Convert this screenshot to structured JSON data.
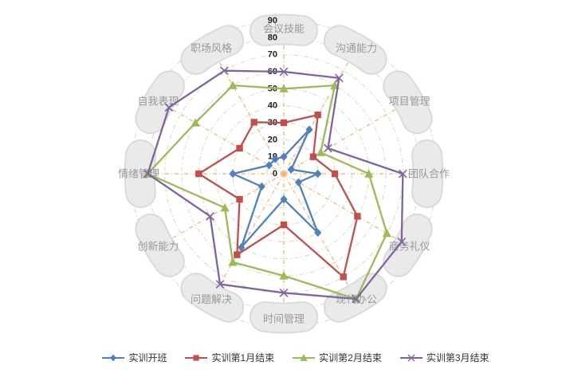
{
  "chart_data": {
    "type": "radar",
    "axis_max": 90,
    "tick_interval": 10,
    "ticks": [
      "0",
      "10",
      "20",
      "30",
      "40",
      "50",
      "60",
      "70",
      "80",
      "90"
    ],
    "categories": [
      "会议技能",
      "沟通能力",
      "项目管理",
      "团队合作",
      "商务礼仪",
      "现代办公",
      "时间管理",
      "问题解决",
      "创新能力",
      "情绪管理",
      "自我表现",
      "职场风格"
    ],
    "series": [
      {
        "name": "实训开班",
        "color": "#4F81BD",
        "symbol": "diamond",
        "values": [
          10,
          30,
          5,
          20,
          10,
          40,
          15,
          50,
          15,
          30,
          10,
          10
        ]
      },
      {
        "name": "实训第1月结束",
        "color": "#C0504D",
        "symbol": "square",
        "values": [
          30,
          40,
          20,
          30,
          50,
          70,
          30,
          55,
          30,
          50,
          30,
          35
        ]
      },
      {
        "name": "实训第2月结束",
        "color": "#9BBB59",
        "symbol": "triangle",
        "values": [
          50,
          60,
          25,
          50,
          70,
          85,
          60,
          60,
          40,
          80,
          60,
          60
        ]
      },
      {
        "name": "实训第3月结束",
        "color": "#8064A2",
        "symbol": "x",
        "values": [
          60,
          65,
          30,
          70,
          80,
          85,
          70,
          75,
          50,
          80,
          78,
          70
        ]
      }
    ],
    "legend_position": "bottom",
    "grid": true,
    "style": {
      "spoke_color": "#F7AF6E",
      "ring_color_a": "#CBDFAD",
      "ring_color_b": "#F0CDC2",
      "band_fill": "#EAEAEA",
      "band_border": "#DADADA",
      "category_label_color": "#999999",
      "tick_label_color": "#222222",
      "legend_text_color": "#333333"
    }
  }
}
